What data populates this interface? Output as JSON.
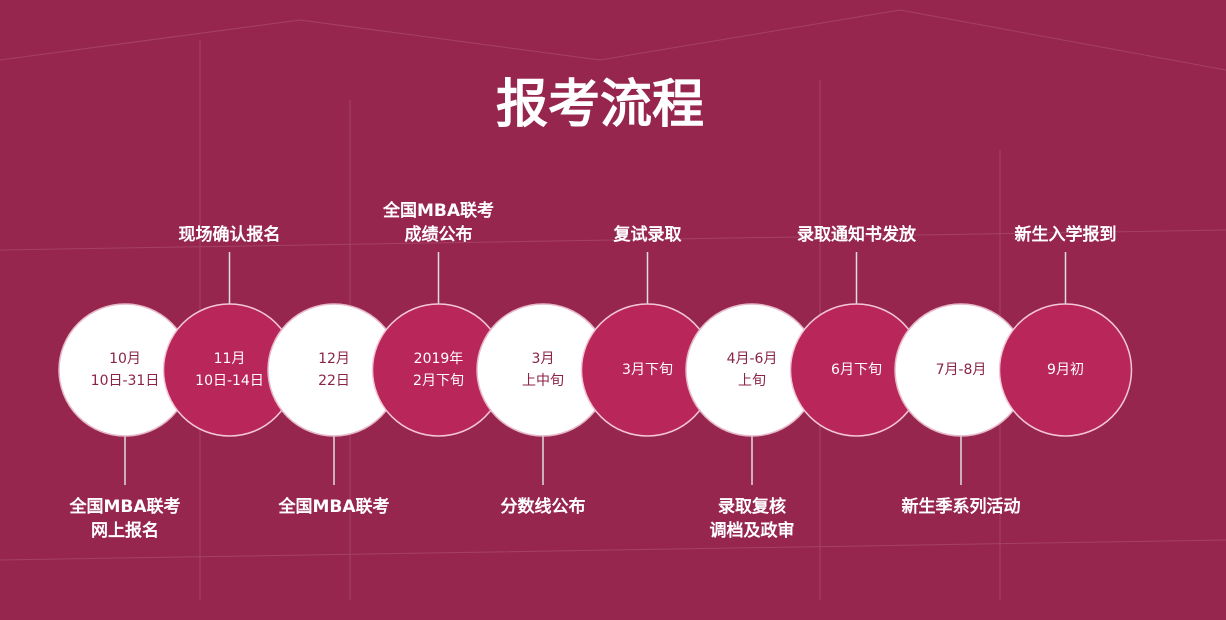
{
  "title": "报考流程",
  "steps": [
    {
      "date": [
        "10月",
        "10日-31日"
      ],
      "label": [
        "全国MBA联考",
        "网上报名"
      ]
    },
    {
      "date": [
        "11月",
        "10日-14日"
      ],
      "label": [
        "现场确认报名"
      ]
    },
    {
      "date": [
        "12月",
        "22日"
      ],
      "label": [
        "全国MBA联考"
      ]
    },
    {
      "date": [
        "2019年",
        "2月下旬"
      ],
      "label": [
        "全国MBA联考",
        "成绩公布"
      ]
    },
    {
      "date": [
        "3月",
        "上中旬"
      ],
      "label": [
        "分数线公布"
      ]
    },
    {
      "date": [
        "3月下旬"
      ],
      "label": [
        "复试录取"
      ]
    },
    {
      "date": [
        "4月-6月",
        "上旬"
      ],
      "label": [
        "录取复核",
        "调档及政审"
      ]
    },
    {
      "date": [
        "6月下旬"
      ],
      "label": [
        "录取通知书发放"
      ]
    },
    {
      "date": [
        "7月-8月"
      ],
      "label": [
        "新生季系列活动"
      ]
    },
    {
      "date": [
        "9月初"
      ],
      "label": [
        "新生入学报到"
      ]
    }
  ]
}
